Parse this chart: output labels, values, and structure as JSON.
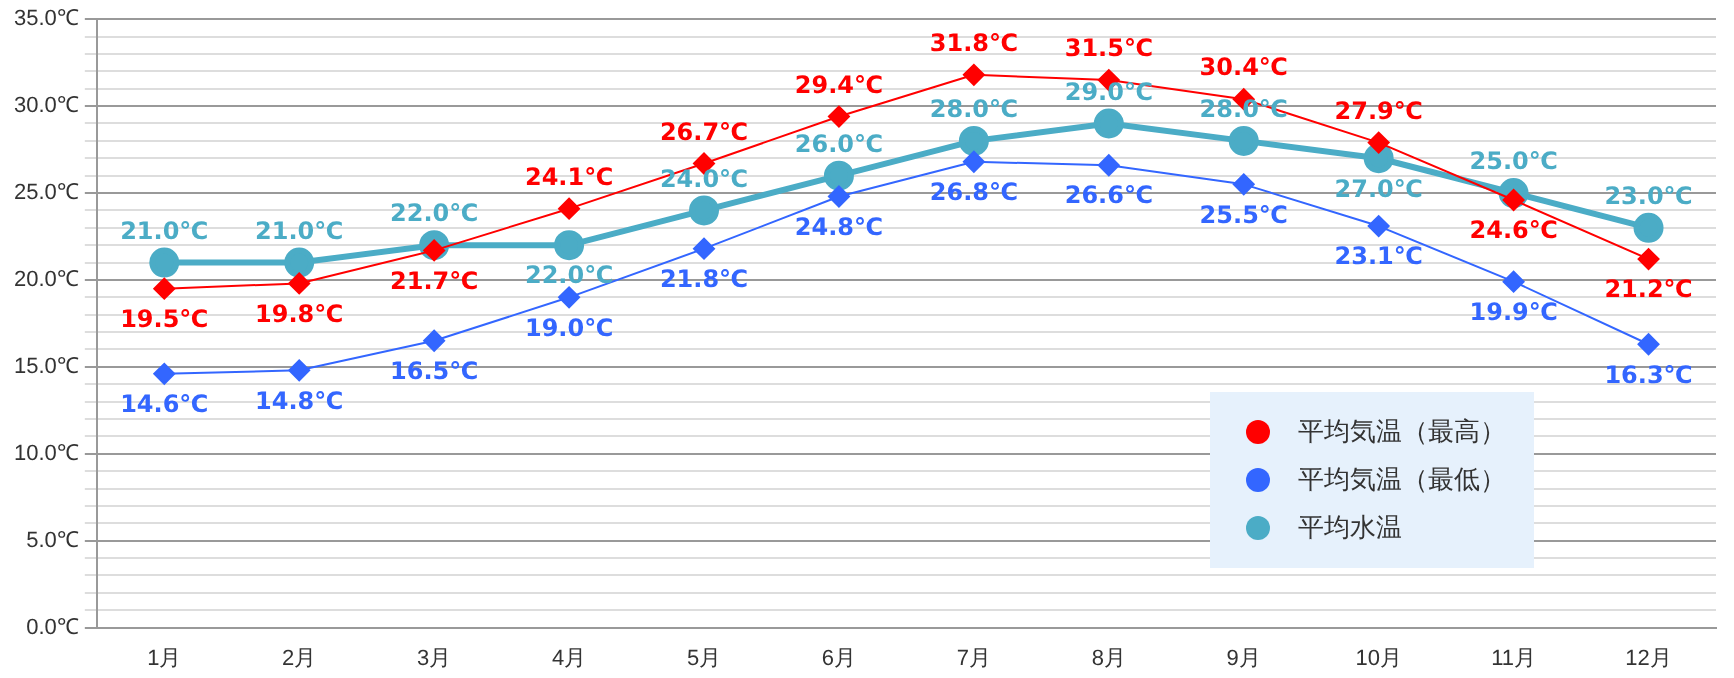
{
  "chart_data": {
    "type": "line",
    "categories": [
      "1月",
      "2月",
      "3月",
      "4月",
      "5月",
      "6月",
      "7月",
      "8月",
      "9月",
      "10月",
      "11月",
      "12月"
    ],
    "series": [
      {
        "name": "平均気温（最高）",
        "color": "#ff0000",
        "marker": "diamond",
        "values": [
          19.5,
          19.8,
          21.7,
          24.1,
          26.7,
          29.4,
          31.8,
          31.5,
          30.4,
          27.9,
          24.6,
          21.2
        ],
        "value_labels": [
          "19.5℃",
          "19.8℃",
          "21.7℃",
          "24.1℃",
          "26.7℃",
          "29.4℃",
          "31.8℃",
          "31.5℃",
          "30.4℃",
          "27.9℃",
          "24.6℃",
          "21.2℃"
        ]
      },
      {
        "name": "平均気温（最低）",
        "color": "#3366ff",
        "marker": "diamond",
        "values": [
          14.6,
          14.8,
          16.5,
          19.0,
          21.8,
          24.8,
          26.8,
          26.6,
          25.5,
          23.1,
          19.9,
          16.3
        ],
        "value_labels": [
          "14.6℃",
          "14.8℃",
          "16.5℃",
          "19.0℃",
          "21.8℃",
          "24.8℃",
          "26.8℃",
          "26.6℃",
          "25.5℃",
          "23.1℃",
          "19.9℃",
          "16.3℃"
        ]
      },
      {
        "name": "平均水温",
        "color": "#4bacc6",
        "marker": "circle",
        "values": [
          21.0,
          21.0,
          22.0,
          22.0,
          24.0,
          26.0,
          28.0,
          29.0,
          28.0,
          27.0,
          25.0,
          23.0
        ],
        "value_labels": [
          "21.0℃",
          "21.0℃",
          "22.0℃",
          "22.0℃",
          "24.0℃",
          "26.0℃",
          "28.0℃",
          "29.0℃",
          "28.0℃",
          "27.0℃",
          "25.0℃",
          "23.0℃"
        ]
      }
    ],
    "ylim": [
      0,
      35
    ],
    "yticks": [
      {
        "value": 0,
        "label": "0.0℃"
      },
      {
        "value": 1,
        "label": null
      },
      {
        "value": 2,
        "label": null
      },
      {
        "value": 3,
        "label": null
      },
      {
        "value": 4,
        "label": null
      },
      {
        "value": 5,
        "label": "5.0℃"
      },
      {
        "value": 6,
        "label": null
      },
      {
        "value": 7,
        "label": null
      },
      {
        "value": 8,
        "label": null
      },
      {
        "value": 9,
        "label": null
      },
      {
        "value": 10,
        "label": "10.0℃"
      },
      {
        "value": 11,
        "label": null
      },
      {
        "value": 12,
        "label": null
      },
      {
        "value": 13,
        "label": null
      },
      {
        "value": 14,
        "label": null
      },
      {
        "value": 15,
        "label": "15.0℃"
      },
      {
        "value": 16,
        "label": null
      },
      {
        "value": 17,
        "label": null
      },
      {
        "value": 18,
        "label": null
      },
      {
        "value": 19,
        "label": null
      },
      {
        "value": 20,
        "label": "20.0℃"
      },
      {
        "value": 21,
        "label": null
      },
      {
        "value": 22,
        "label": null
      },
      {
        "value": 23,
        "label": null
      },
      {
        "value": 24,
        "label": null
      },
      {
        "value": 25,
        "label": "25.0℃"
      },
      {
        "value": 26,
        "label": null
      },
      {
        "value": 27,
        "label": null
      },
      {
        "value": 28,
        "label": null
      },
      {
        "value": 29,
        "label": null
      },
      {
        "value": 30,
        "label": "30.0℃"
      },
      {
        "value": 31,
        "label": null
      },
      {
        "value": 32,
        "label": null
      },
      {
        "value": 33,
        "label": null
      },
      {
        "value": 34,
        "label": null
      },
      {
        "value": 35,
        "label": "35.0℃"
      }
    ],
    "grid": "y",
    "legend": "bottom right"
  }
}
